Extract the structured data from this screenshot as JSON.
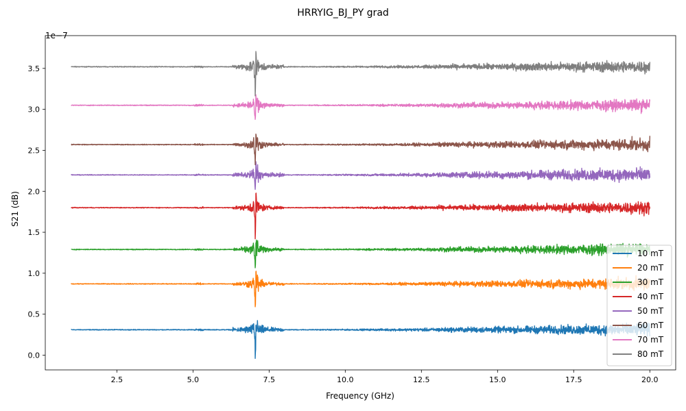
{
  "chart_data": {
    "type": "line",
    "title": "HRRYIG_BJ_PY grad",
    "xlabel": "Frequency (GHz)",
    "ylabel": "S21 (dB)",
    "y_scale_label": "1e−7",
    "xlim": [
      0.15,
      20.85
    ],
    "ylim": [
      -0.18,
      3.9
    ],
    "x_ticks": [
      2.5,
      5.0,
      7.5,
      10.0,
      12.5,
      15.0,
      17.5,
      20.0
    ],
    "x_tick_labels": [
      "2.5",
      "5.0",
      "7.5",
      "10.0",
      "12.5",
      "15.0",
      "17.5",
      "20.0"
    ],
    "y_ticks": [
      0.0,
      0.5,
      1.0,
      1.5,
      2.0,
      2.5,
      3.0,
      3.5
    ],
    "y_tick_labels": [
      "0.0",
      "0.5",
      "1.0",
      "1.5",
      "2.0",
      "2.5",
      "3.0",
      "3.5"
    ],
    "x_range": [
      1.0,
      20.0
    ],
    "resonance_ghz": 7.05,
    "legend_position": "lower-right",
    "series": [
      {
        "name": "10 mT",
        "color": "#1f77b4",
        "baseline": 0.31,
        "noise": [
          0.004,
          0.02,
          0.06
        ],
        "spike": [
          0.16,
          0.31
        ]
      },
      {
        "name": "20 mT",
        "color": "#ff7f0e",
        "baseline": 0.87,
        "noise": [
          0.004,
          0.015,
          0.06
        ],
        "spike": [
          0.22,
          0.25
        ]
      },
      {
        "name": "30 mT",
        "color": "#2ca02c",
        "baseline": 1.29,
        "noise": [
          0.004,
          0.015,
          0.06
        ],
        "spike": [
          0.21,
          0.18
        ]
      },
      {
        "name": "40 mT",
        "color": "#d62728",
        "baseline": 1.8,
        "noise": [
          0.004,
          0.015,
          0.06
        ],
        "spike": [
          0.25,
          0.29
        ]
      },
      {
        "name": "50 mT",
        "color": "#9467bd",
        "baseline": 2.2,
        "noise": [
          0.004,
          0.018,
          0.07
        ],
        "spike": [
          0.2,
          0.13
        ]
      },
      {
        "name": "60 mT",
        "color": "#8c564b",
        "baseline": 2.57,
        "noise": [
          0.004,
          0.015,
          0.06
        ],
        "spike": [
          0.21,
          0.13
        ]
      },
      {
        "name": "70 mT",
        "color": "#e377c2",
        "baseline": 3.05,
        "noise": [
          0.004,
          0.015,
          0.06
        ],
        "spike": [
          0.21,
          0.17
        ]
      },
      {
        "name": "80 mT",
        "color": "#7f7f7f",
        "baseline": 3.52,
        "noise": [
          0.004,
          0.02,
          0.06
        ],
        "spike": [
          0.23,
          0.23
        ]
      }
    ]
  }
}
